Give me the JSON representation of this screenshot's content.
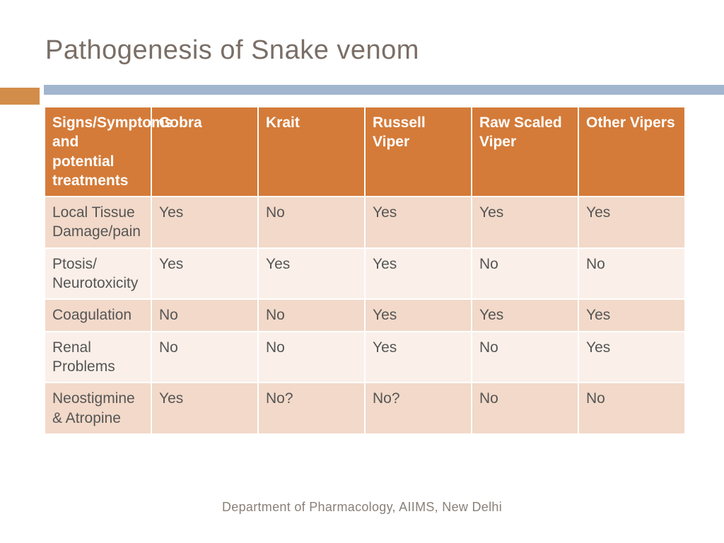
{
  "title": "Pathogenesis of Snake venom",
  "footer": "Department of Pharmacology, AIIMS, New Delhi",
  "divider": {
    "orange_color": "#d38d4a",
    "blue_color": "#a1b6ce"
  },
  "table": {
    "type": "table",
    "header_bg": "#d47b39",
    "header_text_color": "#ffffff",
    "row_odd_bg": "#f2d9c9",
    "row_even_bg": "#faf0e9",
    "cell_text_color": "#555555",
    "border_color": "#ffffff",
    "header_fontsize": 21,
    "cell_fontsize": 21,
    "columns": [
      "Signs/Symptoms and potential treatments",
      "Cobra",
      "Krait",
      "Russell Viper",
      "Raw Scaled Viper",
      "Other Vipers"
    ],
    "rows": [
      [
        "Local Tissue Damage/pain",
        "Yes",
        "No",
        "Yes",
        "Yes",
        "Yes"
      ],
      [
        "Ptosis/ Neurotoxicity",
        "Yes",
        "Yes",
        "Yes",
        "No",
        "No"
      ],
      [
        "Coagulation",
        "No",
        "No",
        "Yes",
        "Yes",
        "Yes"
      ],
      [
        "Renal Problems",
        "No",
        "No",
        "Yes",
        "No",
        "Yes"
      ],
      [
        "Neostigmine & Atropine",
        "Yes",
        "No?",
        "No?",
        "No",
        "No"
      ]
    ]
  }
}
